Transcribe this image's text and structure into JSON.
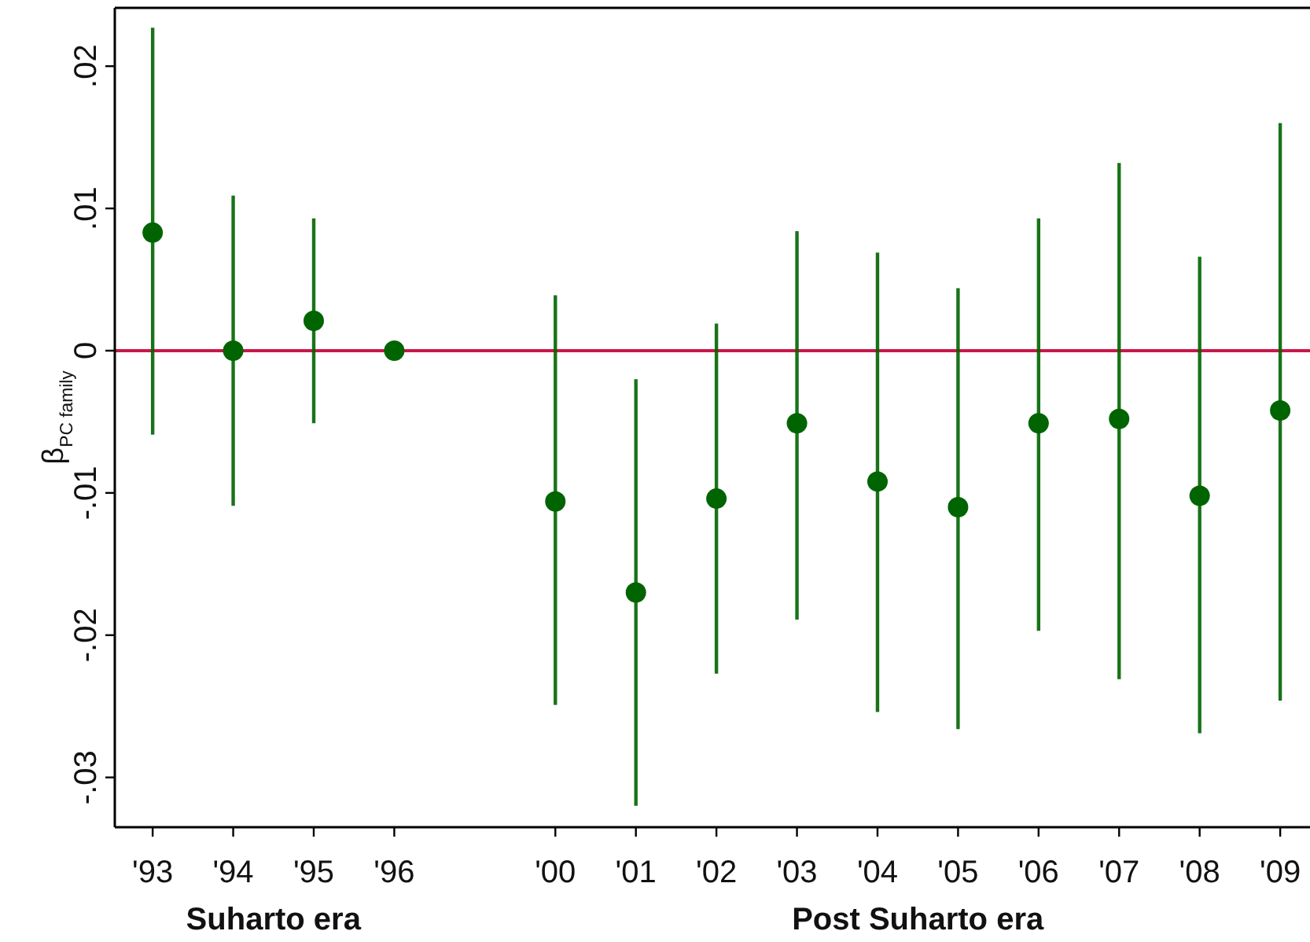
{
  "chart_data": {
    "type": "scatter",
    "ylabel": "β$_{PC family}$",
    "categories": [
      "'93",
      "'94",
      "'95",
      "'96",
      null,
      "'00",
      "'01",
      "'02",
      "'03",
      "'04",
      "'05",
      "'06",
      "'07",
      "'08",
      "'09"
    ],
    "values": [
      0.0083,
      0,
      0.0021,
      0,
      null,
      -0.0106,
      -0.017,
      -0.0104,
      -0.0051,
      -0.0092,
      -0.011,
      -0.0051,
      -0.0048,
      -0.0102,
      -0.0042
    ],
    "errors": [
      [
        -0.0059,
        0.0227
      ],
      [
        -0.0109,
        0.0109
      ],
      [
        -0.0051,
        0.0093
      ],
      null,
      null,
      [
        -0.0249,
        0.0039
      ],
      [
        -0.032,
        -0.002
      ],
      [
        -0.0227,
        0.0019
      ],
      [
        -0.0189,
        0.0084
      ],
      [
        -0.0254,
        0.0069
      ],
      [
        -0.0266,
        0.0044
      ],
      [
        -0.0197,
        0.0093
      ],
      [
        -0.0231,
        0.0132
      ],
      [
        -0.0269,
        0.0066
      ],
      [
        -0.0246,
        0.016
      ]
    ],
    "color": "#006400",
    "marker": "circle",
    "ylim": [
      -0.0335,
      0.0241
    ],
    "yticks": [
      {
        "value": -0.03,
        "label": "-.03"
      },
      {
        "value": -0.02,
        "label": "-.02"
      },
      {
        "value": -0.01,
        "label": "-.01"
      },
      {
        "value": 0,
        "label": "0"
      },
      {
        "value": 0.01,
        "label": ".01"
      },
      {
        "value": 0.02,
        "label": ".02"
      }
    ],
    "ref_lines": [
      {
        "axis": "y",
        "value": 0,
        "color": "#c8174a"
      }
    ],
    "annotations": [
      "Suharto era",
      "Post Suharto era"
    ]
  }
}
